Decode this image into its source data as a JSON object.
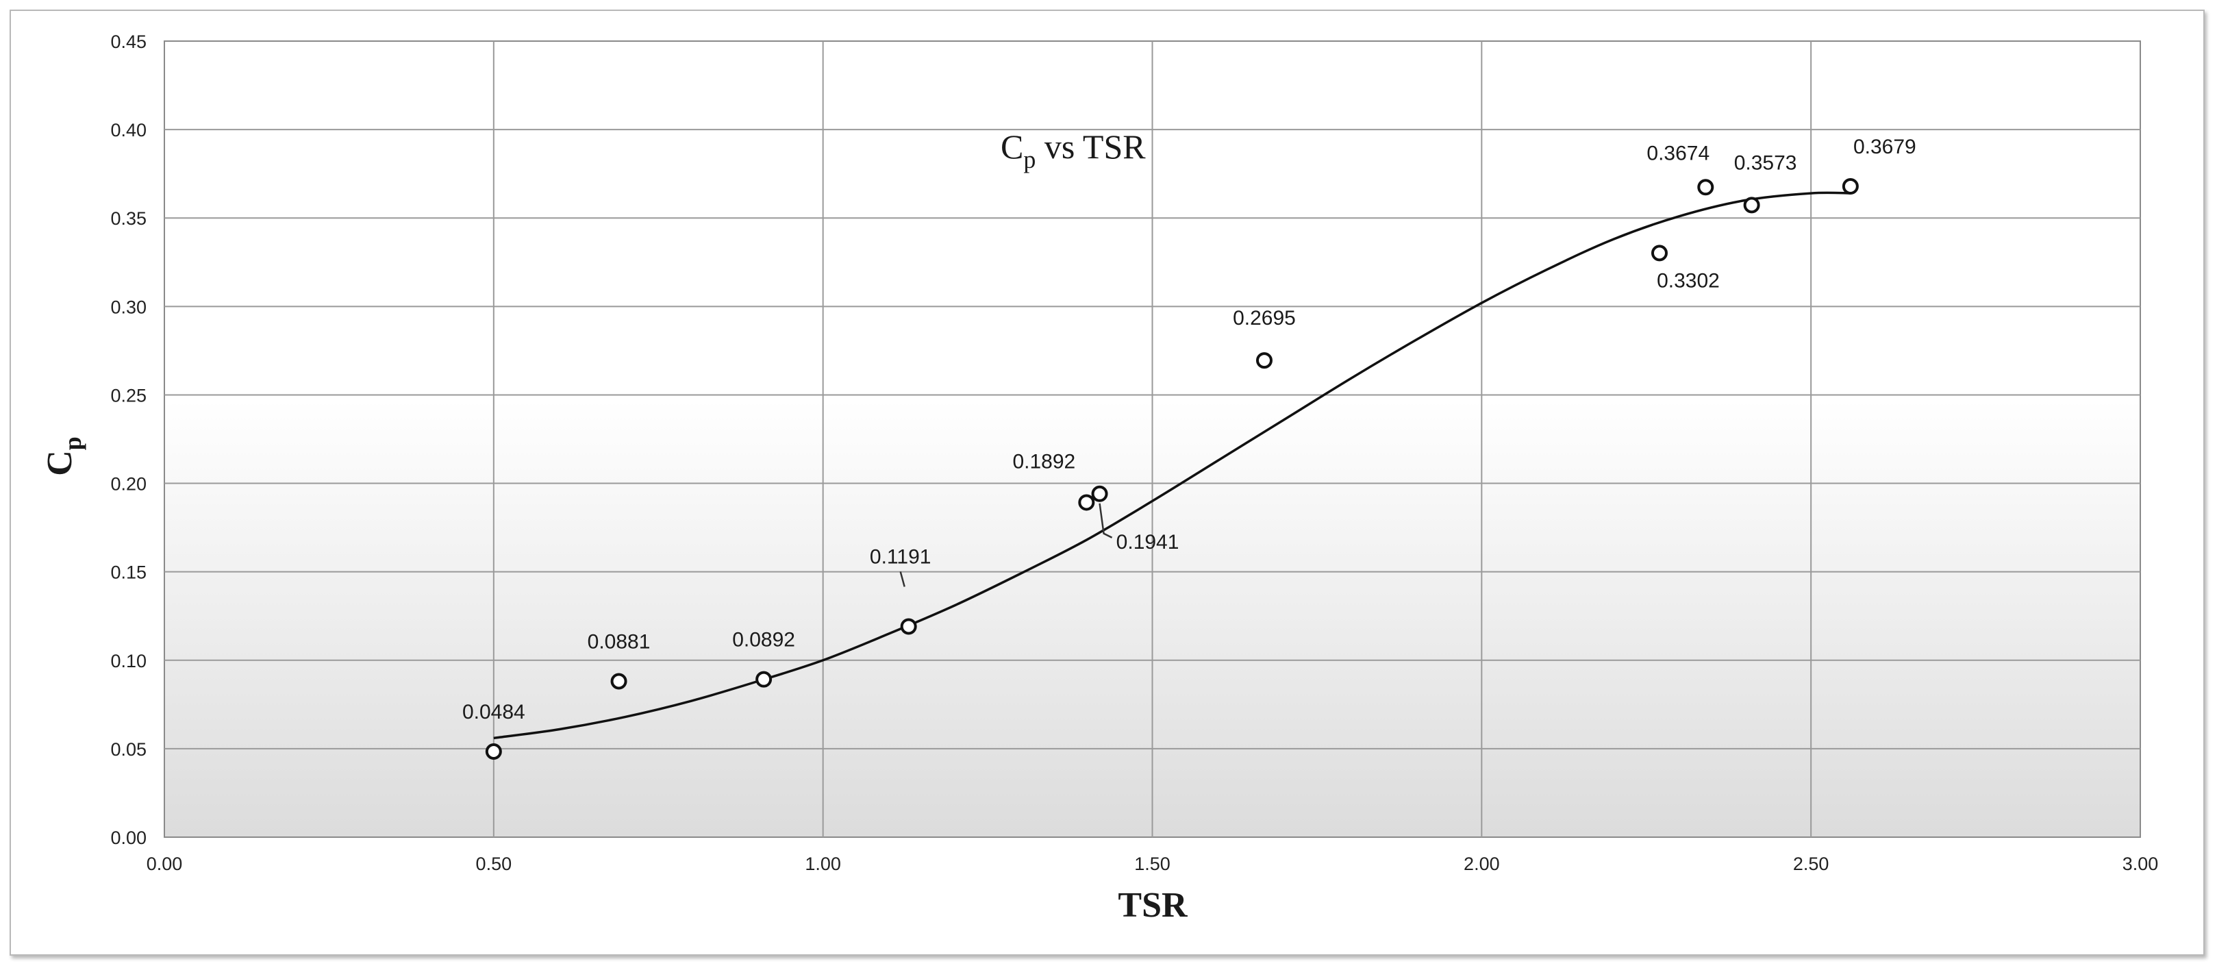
{
  "chart_data": {
    "type": "scatter",
    "title": "C",
    "title_sub": "p",
    "title_rest": " vs TSR",
    "xlabel": "TSR",
    "ylabel": "C",
    "ylabel_sub": "p",
    "xlim": [
      0,
      3
    ],
    "ylim": [
      0,
      0.45
    ],
    "x_ticks": [
      "0.00",
      "0.50",
      "1.00",
      "1.50",
      "2.00",
      "2.50",
      "3.00"
    ],
    "y_ticks": [
      "0.00",
      "0.05",
      "0.10",
      "0.15",
      "0.20",
      "0.25",
      "0.30",
      "0.35",
      "0.40",
      "0.45"
    ],
    "grid": true,
    "series": [
      {
        "points": [
          {
            "x": 0.5,
            "y": 0.0484,
            "label": "0.0484"
          },
          {
            "x": 0.69,
            "y": 0.0881,
            "label": "0.0881"
          },
          {
            "x": 0.91,
            "y": 0.0892,
            "label": "0.0892"
          },
          {
            "x": 1.13,
            "y": 0.1191,
            "label": "0.1191"
          },
          {
            "x": 1.4,
            "y": 0.1892,
            "label": "0.1892"
          },
          {
            "x": 1.42,
            "y": 0.1941,
            "label": "0.1941"
          },
          {
            "x": 1.67,
            "y": 0.2695,
            "label": "0.2695"
          },
          {
            "x": 2.27,
            "y": 0.3302,
            "label": "0.3302"
          },
          {
            "x": 2.34,
            "y": 0.3674,
            "label": "0.3674"
          },
          {
            "x": 2.41,
            "y": 0.3573,
            "label": "0.3573"
          },
          {
            "x": 2.56,
            "y": 0.3679,
            "label": "0.3679"
          }
        ]
      }
    ],
    "trendline": {
      "type": "polynomial",
      "x": [
        0.5,
        0.6,
        0.7,
        0.8,
        0.9,
        1.0,
        1.1,
        1.2,
        1.3,
        1.4,
        1.5,
        1.6,
        1.7,
        1.8,
        1.9,
        2.0,
        2.1,
        2.2,
        2.3,
        2.4,
        2.5,
        2.56
      ],
      "y": [
        0.056,
        0.061,
        0.068,
        0.077,
        0.088,
        0.1,
        0.115,
        0.131,
        0.149,
        0.168,
        0.19,
        0.213,
        0.236,
        0.259,
        0.281,
        0.302,
        0.321,
        0.338,
        0.351,
        0.36,
        0.364,
        0.364
      ]
    }
  }
}
